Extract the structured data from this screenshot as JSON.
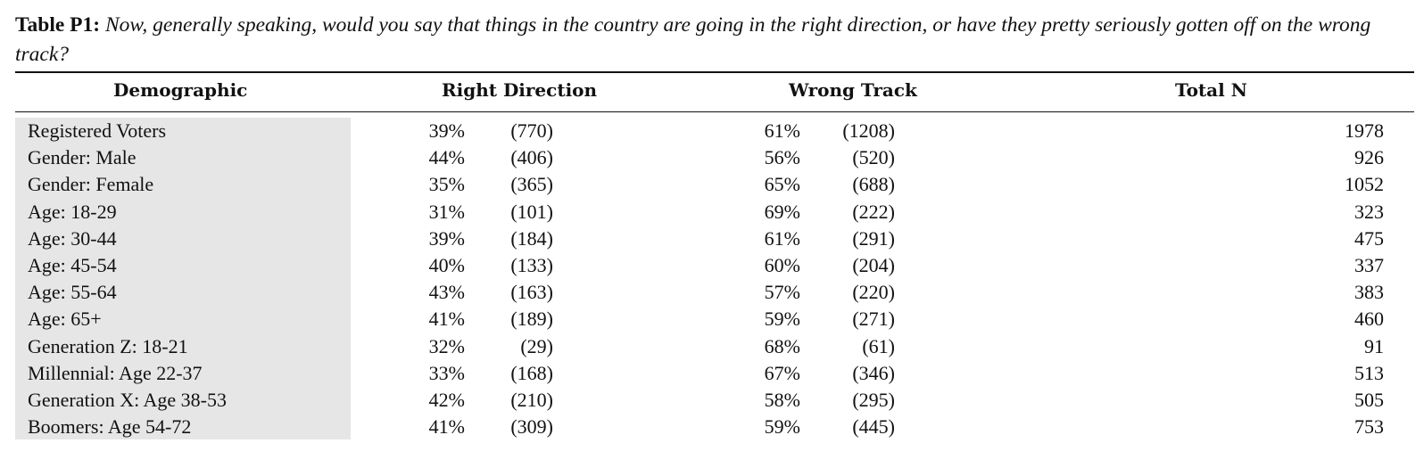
{
  "caption": {
    "label": "Table P1:",
    "question": "Now, generally speaking, would you say that things in the country are going in the right direction, or have they pretty seriously gotten off on the wrong track?"
  },
  "headers": {
    "demographic": "Demographic",
    "right_direction": "Right Direction",
    "wrong_track": "Wrong Track",
    "total_n": "Total N"
  },
  "rows": [
    {
      "demographic": "Registered Voters",
      "rd_pct": "39%",
      "rd_n": "(770)",
      "wt_pct": "61%",
      "wt_n": "(1208)",
      "total": "1978"
    },
    {
      "demographic": "Gender: Male",
      "rd_pct": "44%",
      "rd_n": "(406)",
      "wt_pct": "56%",
      "wt_n": "(520)",
      "total": "926"
    },
    {
      "demographic": "Gender: Female",
      "rd_pct": "35%",
      "rd_n": "(365)",
      "wt_pct": "65%",
      "wt_n": "(688)",
      "total": "1052"
    },
    {
      "demographic": "Age: 18-29",
      "rd_pct": "31%",
      "rd_n": "(101)",
      "wt_pct": "69%",
      "wt_n": "(222)",
      "total": "323"
    },
    {
      "demographic": "Age: 30-44",
      "rd_pct": "39%",
      "rd_n": "(184)",
      "wt_pct": "61%",
      "wt_n": "(291)",
      "total": "475"
    },
    {
      "demographic": "Age: 45-54",
      "rd_pct": "40%",
      "rd_n": "(133)",
      "wt_pct": "60%",
      "wt_n": "(204)",
      "total": "337"
    },
    {
      "demographic": "Age: 55-64",
      "rd_pct": "43%",
      "rd_n": "(163)",
      "wt_pct": "57%",
      "wt_n": "(220)",
      "total": "383"
    },
    {
      "demographic": "Age: 65+",
      "rd_pct": "41%",
      "rd_n": "(189)",
      "wt_pct": "59%",
      "wt_n": "(271)",
      "total": "460"
    },
    {
      "demographic": "Generation Z: 18-21",
      "rd_pct": "32%",
      "rd_n": "(29)",
      "wt_pct": "68%",
      "wt_n": "(61)",
      "total": "91"
    },
    {
      "demographic": "Millennial: Age 22-37",
      "rd_pct": "33%",
      "rd_n": "(168)",
      "wt_pct": "67%",
      "wt_n": "(346)",
      "total": "513"
    },
    {
      "demographic": "Generation X: Age 38-53",
      "rd_pct": "42%",
      "rd_n": "(210)",
      "wt_pct": "58%",
      "wt_n": "(295)",
      "total": "505"
    },
    {
      "demographic": "Boomers: Age 54-72",
      "rd_pct": "41%",
      "rd_n": "(309)",
      "wt_pct": "59%",
      "wt_n": "(445)",
      "total": "753"
    }
  ]
}
